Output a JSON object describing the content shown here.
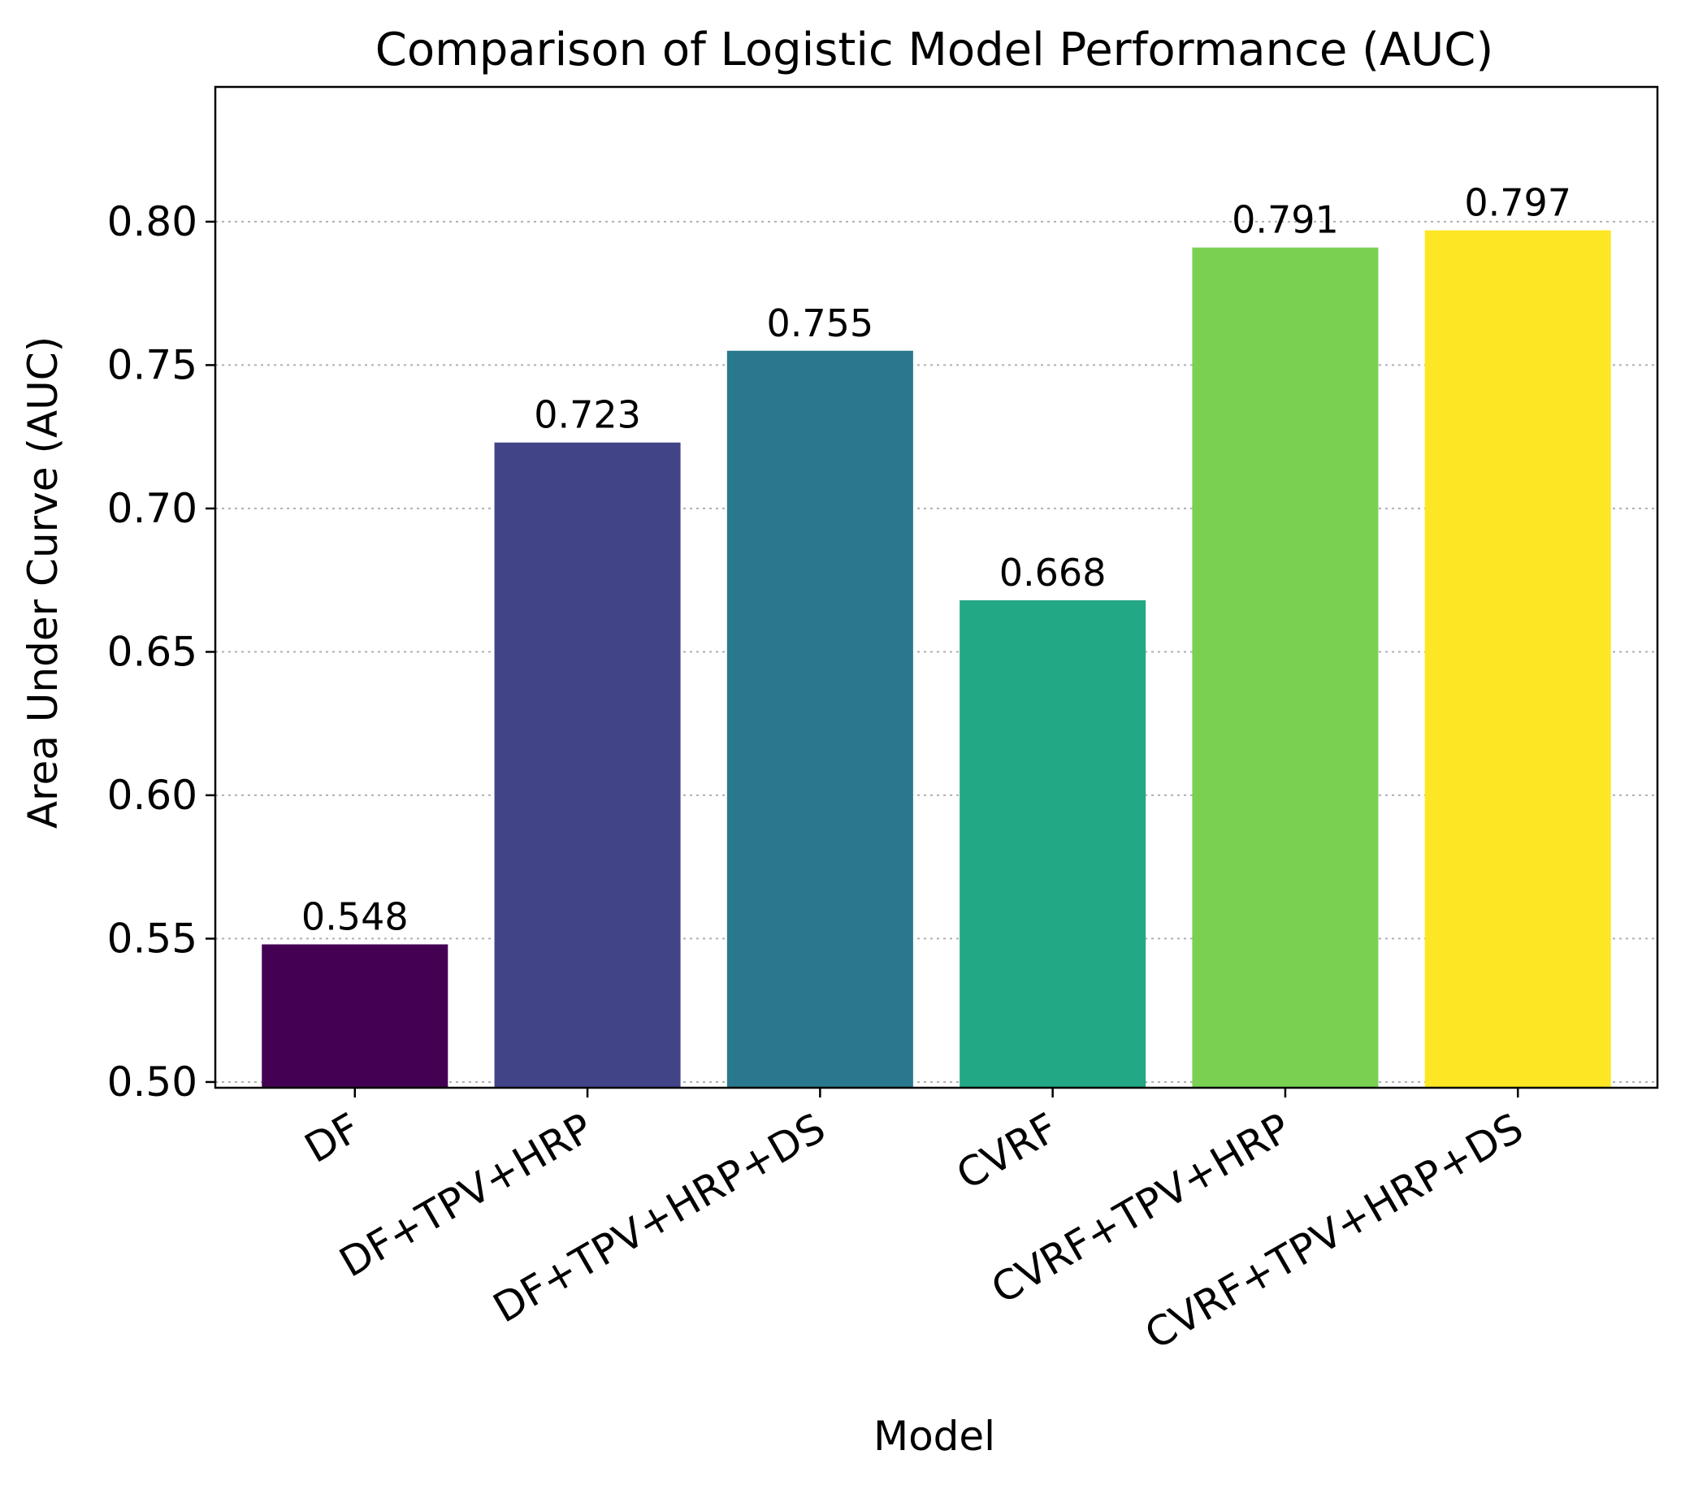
{
  "chart_data": {
    "type": "bar",
    "title": "Comparison of Logistic Model Performance (AUC)",
    "xlabel": "Model",
    "ylabel": "Area Under Curve (AUC)",
    "categories": [
      "DF",
      "DF+TPV+HRP",
      "DF+TPV+HRP+DS",
      "CVRF",
      "CVRF+TPV+HRP",
      "CVRF+TPV+HRP+DS"
    ],
    "values": [
      0.548,
      0.723,
      0.755,
      0.668,
      0.791,
      0.797
    ],
    "value_labels": [
      "0.548",
      "0.723",
      "0.755",
      "0.668",
      "0.791",
      "0.797"
    ],
    "colors": [
      "#440154",
      "#414487",
      "#2a788e",
      "#22a884",
      "#7ad151",
      "#fde725"
    ],
    "ylim": [
      0.498,
      0.847
    ],
    "yticks": [
      0.5,
      0.55,
      0.6,
      0.65,
      0.7,
      0.75,
      0.8
    ],
    "ytick_labels": [
      "0.50",
      "0.55",
      "0.60",
      "0.65",
      "0.70",
      "0.75",
      "0.80"
    ],
    "grid": "y-dotted",
    "x_tick_rotation": 30
  }
}
